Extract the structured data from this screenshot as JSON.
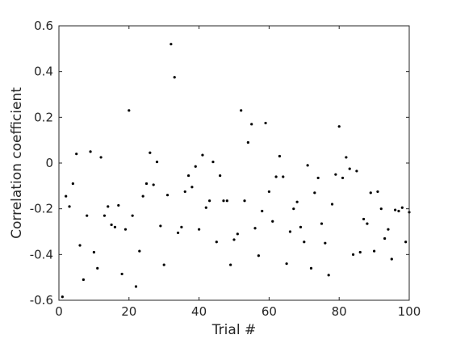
{
  "chart_data": {
    "type": "scatter",
    "title": "",
    "xlabel": "Trial #",
    "ylabel": "Correlation coefficient",
    "xlim": [
      0,
      100
    ],
    "ylim": [
      -0.6,
      0.6
    ],
    "xticks": [
      0,
      20,
      40,
      60,
      80,
      100
    ],
    "xtick_labels": [
      "0",
      "20",
      "40",
      "60",
      "80",
      "100"
    ],
    "yticks": [
      -0.6,
      -0.4,
      -0.2,
      0,
      0.2,
      0.4,
      0.6
    ],
    "ytick_labels": [
      "-0.6",
      "-0.4",
      "-0.2",
      "0",
      "0.2",
      "0.4",
      "0.6"
    ],
    "grid": false,
    "marker_color": "#000000",
    "series": [
      {
        "x": [
          1,
          2,
          3,
          4,
          5,
          6,
          7,
          8,
          9,
          10,
          11,
          12,
          13,
          14,
          15,
          16,
          17,
          18,
          19,
          20,
          21,
          22,
          23,
          24,
          25,
          26,
          27,
          28,
          29,
          30,
          31,
          32,
          33,
          34,
          35,
          36,
          37,
          38,
          39,
          40,
          41,
          42,
          43,
          44,
          45,
          46,
          47,
          48,
          49,
          50,
          51,
          52,
          53,
          54,
          55,
          56,
          57,
          58,
          59,
          60,
          61,
          62,
          63,
          64,
          65,
          66,
          67,
          68,
          69,
          70,
          71,
          72,
          73,
          74,
          75,
          76,
          77,
          78,
          79,
          80,
          81,
          82,
          83,
          84,
          85,
          86,
          87,
          88,
          89,
          90,
          91,
          92,
          93,
          94,
          95,
          96,
          97,
          98,
          99,
          100
        ],
        "y": [
          -0.585,
          -0.145,
          -0.19,
          -0.09,
          0.04,
          -0.36,
          -0.51,
          -0.23,
          0.05,
          -0.39,
          -0.46,
          0.025,
          -0.23,
          -0.19,
          -0.27,
          -0.28,
          -0.185,
          -0.485,
          -0.29,
          0.23,
          -0.23,
          -0.54,
          -0.385,
          -0.145,
          -0.09,
          0.045,
          -0.095,
          0.005,
          -0.275,
          -0.445,
          -0.14,
          0.52,
          0.375,
          -0.305,
          -0.28,
          -0.125,
          -0.055,
          -0.105,
          -0.015,
          -0.29,
          0.035,
          -0.195,
          -0.165,
          0.005,
          -0.345,
          -0.055,
          -0.165,
          -0.165,
          -0.445,
          -0.335,
          -0.31,
          0.23,
          -0.165,
          0.09,
          0.17,
          -0.285,
          -0.405,
          -0.21,
          0.175,
          -0.125,
          -0.255,
          -0.06,
          0.03,
          -0.06,
          -0.44,
          -0.3,
          -0.2,
          -0.17,
          -0.28,
          -0.345,
          -0.01,
          -0.46,
          -0.13,
          -0.065,
          -0.265,
          -0.35,
          -0.49,
          -0.18,
          -0.05,
          0.16,
          -0.065,
          0.025,
          -0.025,
          -0.4,
          -0.035,
          -0.39,
          -0.245,
          -0.265,
          -0.13,
          -0.385,
          -0.125,
          -0.2,
          -0.33,
          -0.29,
          -0.42,
          -0.205,
          -0.21,
          -0.195,
          -0.345,
          -0.215
        ]
      }
    ]
  }
}
